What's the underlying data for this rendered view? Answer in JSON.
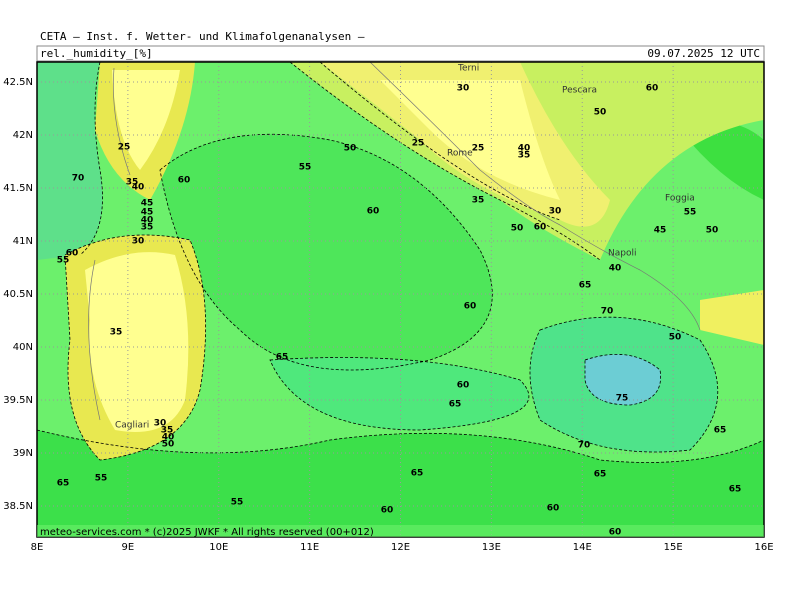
{
  "header": {
    "title": "CETA — Inst. f. Wetter- und Klimafolgenanalysen —",
    "variable": "rel._humidity_[%]",
    "datetime": "09.07.2025 12 UTC"
  },
  "map": {
    "lat_labels": [
      "42.5N",
      "42N",
      "41.5N",
      "41N",
      "40.5N",
      "40N",
      "39.5N",
      "39N",
      "38.5N"
    ],
    "lon_labels": [
      "8E",
      "9E",
      "10E",
      "11E",
      "12E",
      "13E",
      "14E",
      "15E",
      "16E"
    ],
    "cities": [
      "Terni",
      "Pescara",
      "Rome",
      "Napoli",
      "Foggia",
      "Cagliari"
    ],
    "contour_labels": [
      70,
      25,
      35,
      40,
      45,
      45,
      40,
      35,
      60,
      55,
      30,
      60,
      55,
      50,
      25,
      30,
      25,
      40,
      35,
      60,
      35,
      50,
      30,
      60,
      60,
      50,
      55,
      45,
      50,
      40,
      65,
      70,
      60,
      35,
      65,
      60,
      65,
      75,
      70,
      50,
      65,
      65,
      65,
      65,
      55,
      65,
      55,
      60,
      60,
      60,
      30,
      35,
      40,
      50
    ],
    "footer": "meteo-services.com * (c)2025 JWKF * All rights reserved (00+012)"
  }
}
